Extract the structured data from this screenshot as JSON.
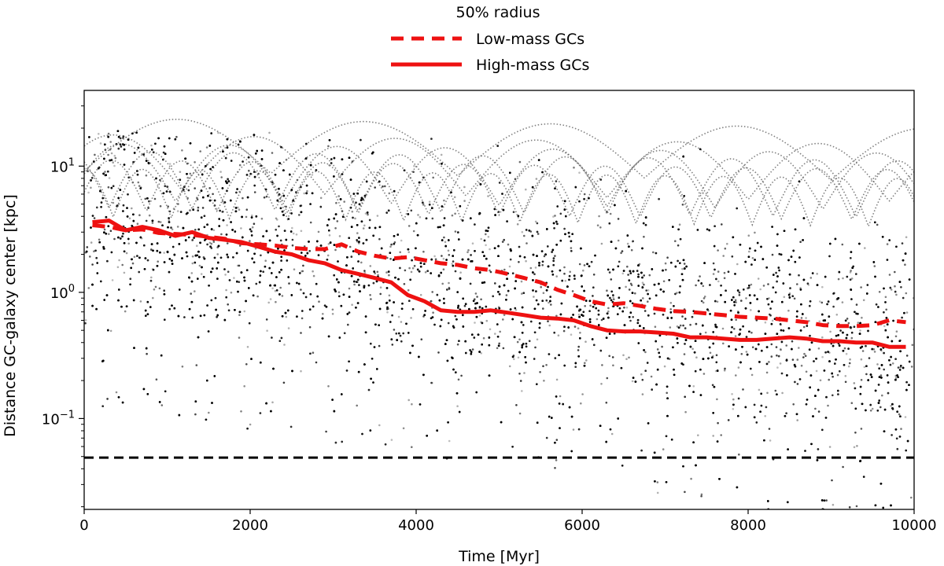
{
  "chart_data": {
    "type": "scatter",
    "xlabel": "Time [Myr]",
    "ylabel": "Distance GC-galaxy center [kpc]",
    "xlim": [
      0,
      10000
    ],
    "ylim_log10": [
      -1.72,
      1.6
    ],
    "yscale": "log",
    "x_ticks": [
      {
        "value": 0,
        "label": "0"
      },
      {
        "value": 2000,
        "label": "2000"
      },
      {
        "value": 4000,
        "label": "4000"
      },
      {
        "value": 6000,
        "label": "6000"
      },
      {
        "value": 8000,
        "label": "8000"
      },
      {
        "value": 10000,
        "label": "10000"
      }
    ],
    "y_ticks": [
      {
        "log": 1,
        "base": "10",
        "exp": "1"
      },
      {
        "log": 0,
        "base": "10",
        "exp": "0"
      },
      {
        "log": -1,
        "base": "10",
        "exp": "−1"
      }
    ],
    "legend": {
      "title": "50% radius",
      "placement": "top-center-outside",
      "entries": [
        {
          "label": "Low-mass GCs",
          "style": "dashed",
          "color": "#ee1111"
        },
        {
          "label": "High-mass GCs",
          "style": "solid",
          "color": "#ee1111"
        }
      ]
    },
    "reference_line": {
      "y": 0.049,
      "style": "dashed",
      "color": "#000000"
    },
    "series": [
      {
        "name": "Low-mass GCs",
        "style": "dashed",
        "color": "#ee1111",
        "x": [
          100,
          300,
          500,
          700,
          900,
          1100,
          1300,
          1500,
          1700,
          1900,
          2100,
          2300,
          2500,
          2700,
          2900,
          3100,
          3300,
          3500,
          3700,
          3900,
          4100,
          4300,
          4500,
          4700,
          4900,
          5100,
          5300,
          5500,
          5700,
          5900,
          6100,
          6300,
          6500,
          6700,
          6900,
          7100,
          7300,
          7500,
          7700,
          7900,
          8100,
          8300,
          8500,
          8700,
          8900,
          9100,
          9300,
          9500,
          9700,
          9900
        ],
        "y": [
          3.4,
          3.3,
          3.1,
          3.15,
          2.95,
          2.9,
          2.85,
          2.75,
          2.65,
          2.45,
          2.4,
          2.35,
          2.25,
          2.2,
          2.2,
          2.4,
          2.1,
          1.95,
          1.85,
          1.9,
          1.8,
          1.7,
          1.65,
          1.55,
          1.5,
          1.4,
          1.3,
          1.2,
          1.05,
          0.95,
          0.85,
          0.8,
          0.82,
          0.78,
          0.74,
          0.71,
          0.7,
          0.68,
          0.66,
          0.64,
          0.63,
          0.62,
          0.6,
          0.58,
          0.55,
          0.54,
          0.54,
          0.55,
          0.6,
          0.58
        ]
      },
      {
        "name": "High-mass GCs",
        "style": "solid",
        "color": "#ee1111",
        "x": [
          100,
          300,
          500,
          700,
          900,
          1100,
          1300,
          1500,
          1700,
          1900,
          2100,
          2300,
          2500,
          2700,
          2900,
          3100,
          3300,
          3500,
          3700,
          3900,
          4100,
          4300,
          4500,
          4700,
          4900,
          5100,
          5300,
          5500,
          5700,
          5900,
          6100,
          6300,
          6500,
          6700,
          6900,
          7100,
          7300,
          7500,
          7700,
          7900,
          8100,
          8300,
          8500,
          8700,
          8900,
          9100,
          9300,
          9500,
          9700,
          9900
        ],
        "y": [
          3.6,
          3.7,
          3.1,
          3.3,
          3.1,
          2.8,
          3.0,
          2.7,
          2.6,
          2.5,
          2.3,
          2.1,
          2.0,
          1.8,
          1.7,
          1.5,
          1.4,
          1.3,
          1.2,
          0.95,
          0.85,
          0.72,
          0.7,
          0.7,
          0.72,
          0.69,
          0.66,
          0.63,
          0.62,
          0.6,
          0.54,
          0.5,
          0.49,
          0.49,
          0.48,
          0.47,
          0.44,
          0.44,
          0.43,
          0.42,
          0.42,
          0.43,
          0.44,
          0.43,
          0.41,
          0.41,
          0.4,
          0.4,
          0.37,
          0.37
        ]
      }
    ]
  }
}
